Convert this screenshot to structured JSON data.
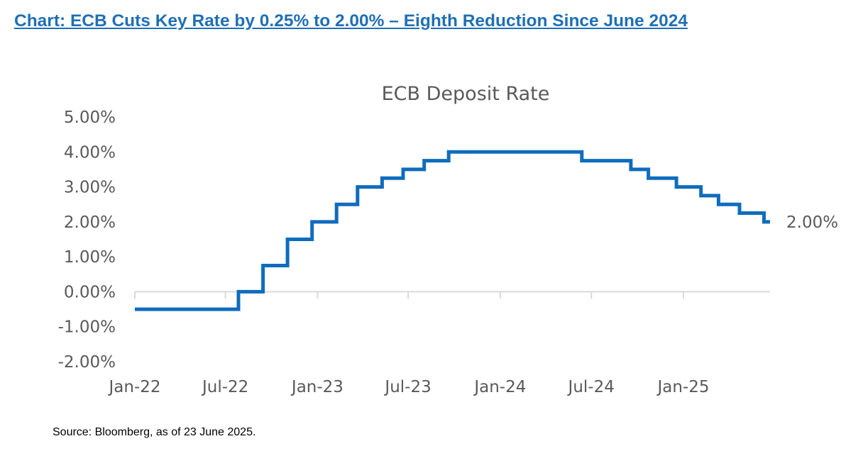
{
  "headline": "Chart: ECB Cuts Key Rate by 0.25% to 2.00% – Eighth Reduction Since June 2024",
  "source": "Source: Bloomberg, as of 23 June 2025.",
  "colors": {
    "headline": "#1f6fb5",
    "line": "#0f6cbd",
    "axis": "#d9d9d9",
    "text": "#595959"
  },
  "chart_data": {
    "type": "line",
    "title": "ECB Deposit Rate",
    "x_ticks": [
      "Jan-22",
      "Jul-22",
      "Jan-23",
      "Jul-23",
      "Jan-24",
      "Jul-24",
      "Jan-25"
    ],
    "y_ticks": [
      "5.00%",
      "4.00%",
      "3.00%",
      "2.00%",
      "1.00%",
      "0.00%",
      "-1.00%",
      "-2.00%"
    ],
    "ylim": [
      -2,
      5
    ],
    "xlim": [
      "2022-01-01",
      "2025-06-23"
    ],
    "grid": false,
    "legend": "none",
    "end_label": "2.00%",
    "series": [
      {
        "step": true,
        "points": [
          {
            "date": "2022-01-01",
            "value": -0.5
          },
          {
            "date": "2022-07-27",
            "value": 0.0
          },
          {
            "date": "2022-09-14",
            "value": 0.75
          },
          {
            "date": "2022-11-02",
            "value": 1.5
          },
          {
            "date": "2022-12-21",
            "value": 2.0
          },
          {
            "date": "2023-02-08",
            "value": 2.5
          },
          {
            "date": "2023-03-22",
            "value": 3.0
          },
          {
            "date": "2023-05-10",
            "value": 3.25
          },
          {
            "date": "2023-06-21",
            "value": 3.5
          },
          {
            "date": "2023-08-02",
            "value": 3.75
          },
          {
            "date": "2023-09-20",
            "value": 4.0
          },
          {
            "date": "2024-06-12",
            "value": 3.75
          },
          {
            "date": "2024-09-18",
            "value": 3.5
          },
          {
            "date": "2024-10-23",
            "value": 3.25
          },
          {
            "date": "2024-12-18",
            "value": 3.0
          },
          {
            "date": "2025-02-05",
            "value": 2.75
          },
          {
            "date": "2025-03-12",
            "value": 2.5
          },
          {
            "date": "2025-04-23",
            "value": 2.25
          },
          {
            "date": "2025-06-11",
            "value": 2.0
          },
          {
            "date": "2025-06-23",
            "value": 2.0
          }
        ]
      }
    ]
  }
}
